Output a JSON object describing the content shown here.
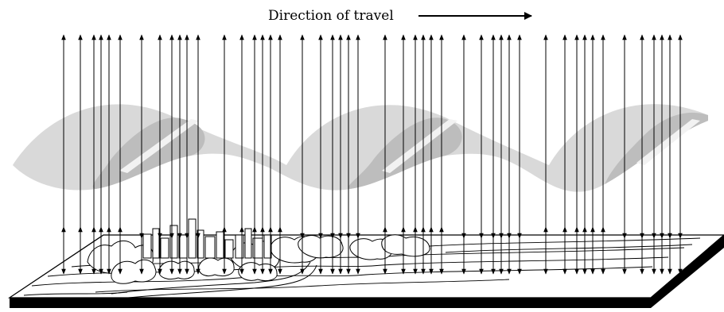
{
  "diagram": {
    "title": "Direction of travel",
    "colors": {
      "ink": "#000000",
      "ribbon_light": "#d9d9d9",
      "ribbon_dark": "#bdbdbd",
      "paper": "#ffffff"
    }
  }
}
